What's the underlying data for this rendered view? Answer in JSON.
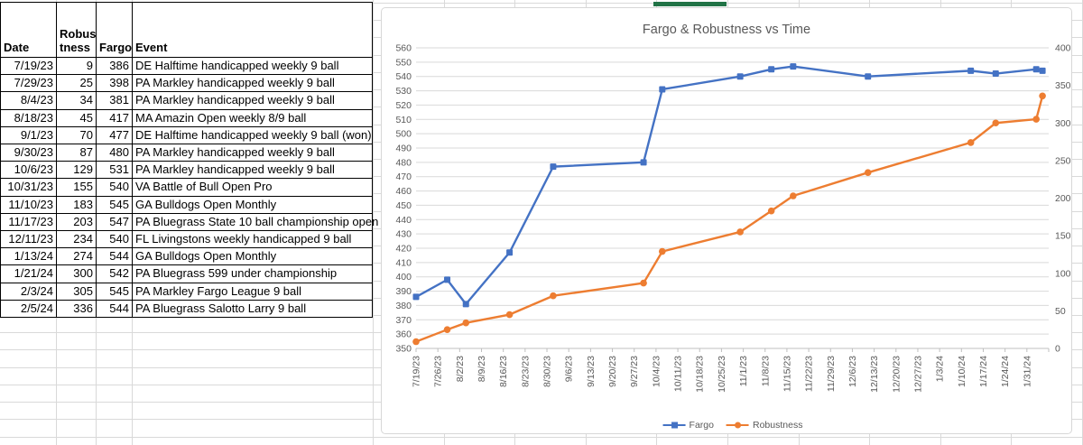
{
  "sheet": {
    "selection_accent_color": "#217346",
    "gridline_color": "#d9d9d9"
  },
  "table": {
    "headers": [
      "Date",
      "Robus\ntness",
      "Fargo",
      "Event"
    ],
    "rows": [
      {
        "date": "7/19/23",
        "robustness": "9",
        "fargo": "386",
        "event": "DE Halftime handicapped weekly 9 ball"
      },
      {
        "date": "7/29/23",
        "robustness": "25",
        "fargo": "398",
        "event": "PA Markley handicapped weekly 9 ball"
      },
      {
        "date": "8/4/23",
        "robustness": "34",
        "fargo": "381",
        "event": "PA Markley handicapped weekly 9 ball"
      },
      {
        "date": "8/18/23",
        "robustness": "45",
        "fargo": "417",
        "event": "MA Amazin Open weekly 8/9 ball"
      },
      {
        "date": "9/1/23",
        "robustness": "70",
        "fargo": "477",
        "event": "DE Halftime handicapped weekly 9 ball (won)"
      },
      {
        "date": "9/30/23",
        "robustness": "87",
        "fargo": "480",
        "event": "PA Markley handicapped weekly 9 ball"
      },
      {
        "date": "10/6/23",
        "robustness": "129",
        "fargo": "531",
        "event": "PA Markley handicapped weekly 9 ball"
      },
      {
        "date": "10/31/23",
        "robustness": "155",
        "fargo": "540",
        "event": "VA Battle of Bull Open Pro"
      },
      {
        "date": "11/10/23",
        "robustness": "183",
        "fargo": "545",
        "event": "GA Bulldogs Open Monthly"
      },
      {
        "date": "11/17/23",
        "robustness": "203",
        "fargo": "547",
        "event": "PA Bluegrass State 10 ball championship open"
      },
      {
        "date": "12/11/23",
        "robustness": "234",
        "fargo": "540",
        "event": "FL Livingstons weekly handicapped 9 ball"
      },
      {
        "date": "1/13/24",
        "robustness": "274",
        "fargo": "544",
        "event": "GA Bulldogs Open Monthly"
      },
      {
        "date": "1/21/24",
        "robustness": "300",
        "fargo": "542",
        "event": "PA Bluegrass 599 under championship"
      },
      {
        "date": "2/3/24",
        "robustness": "305",
        "fargo": "545",
        "event": "PA Markley Fargo League 9 ball"
      },
      {
        "date": "2/5/24",
        "robustness": "336",
        "fargo": "544",
        "event": "PA Bluegrass Salotto Larry 9 ball"
      }
    ]
  },
  "chart_data": {
    "type": "line",
    "title": "Fargo & Robustness vs Time",
    "x": [
      "7/19/23",
      "7/29/23",
      "8/4/23",
      "8/18/23",
      "9/1/23",
      "9/30/23",
      "10/6/23",
      "10/31/23",
      "11/10/23",
      "11/17/23",
      "12/11/23",
      "1/13/24",
      "1/21/24",
      "2/3/24",
      "2/5/24"
    ],
    "series": [
      {
        "name": "Fargo",
        "axis": "left",
        "marker": "square",
        "color": "#4472C4",
        "values": [
          386,
          398,
          381,
          417,
          477,
          480,
          531,
          540,
          545,
          547,
          540,
          544,
          542,
          545,
          544
        ]
      },
      {
        "name": "Robustness",
        "axis": "right",
        "marker": "circle",
        "color": "#ED7D31",
        "values": [
          9,
          25,
          34,
          45,
          70,
          87,
          129,
          155,
          183,
          203,
          234,
          274,
          300,
          305,
          336
        ]
      }
    ],
    "left_axis": {
      "min": 350,
      "max": 560,
      "step": 10
    },
    "right_axis": {
      "min": 0,
      "max": 400,
      "step": 50
    },
    "x_axis": {
      "tick_labels": [
        "7/19/23",
        "7/26/23",
        "8/2/23",
        "8/9/23",
        "8/16/23",
        "8/23/23",
        "8/30/23",
        "9/6/23",
        "9/13/23",
        "9/20/23",
        "9/27/23",
        "10/4/23",
        "10/11/23",
        "10/18/23",
        "10/25/23",
        "11/1/23",
        "11/8/23",
        "11/15/23",
        "11/22/23",
        "11/29/23",
        "12/6/23",
        "12/13/23",
        "12/20/23",
        "12/27/23",
        "1/3/24",
        "1/10/24",
        "1/17/24",
        "1/24/24",
        "1/31/24"
      ]
    },
    "legend_position": "bottom",
    "gridlines": "horizontal",
    "text_color": "#595959"
  }
}
